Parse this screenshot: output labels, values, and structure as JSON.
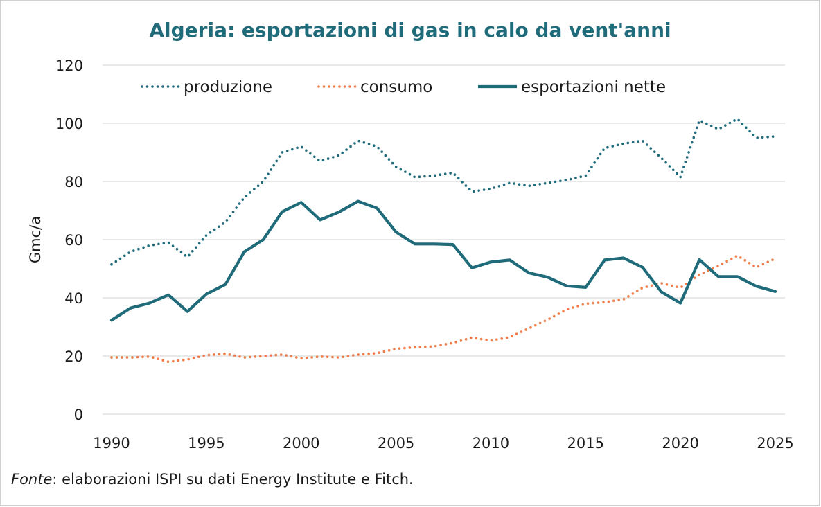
{
  "chart_data": {
    "type": "line",
    "title": "Algeria: esportazioni di gas in calo da vent'anni",
    "xlabel": "",
    "ylabel": "Gmc/a",
    "xlim": [
      1990,
      2025
    ],
    "ylim": [
      0,
      120
    ],
    "x_ticks": [
      1990,
      1995,
      2000,
      2005,
      2010,
      2015,
      2020,
      2025
    ],
    "y_ticks": [
      0,
      20,
      40,
      60,
      80,
      100,
      120
    ],
    "grid": "horizontal",
    "legend_position": "top",
    "x": [
      1990,
      1991,
      1992,
      1993,
      1994,
      1995,
      1996,
      1997,
      1998,
      1999,
      2000,
      2001,
      2002,
      2003,
      2004,
      2005,
      2006,
      2007,
      2008,
      2009,
      2010,
      2011,
      2012,
      2013,
      2014,
      2015,
      2016,
      2017,
      2018,
      2019,
      2020,
      2021,
      2022,
      2023,
      2024,
      2025
    ],
    "series": [
      {
        "name": "produzione",
        "style": "dotted",
        "color": "#1f6b7a",
        "values": [
          51.5,
          55.8,
          58,
          59,
          54,
          61.5,
          66,
          74.5,
          80,
          90,
          92,
          87,
          89,
          94,
          92,
          85,
          81.5,
          82,
          83,
          76.5,
          77.5,
          79.5,
          78.5,
          79.5,
          80.5,
          82,
          91.5,
          93,
          94,
          88,
          81.5,
          101,
          98,
          101.5,
          95,
          95.5
        ]
      },
      {
        "name": "consumo",
        "style": "dotted",
        "color": "#f07d4a",
        "values": [
          19.5,
          19.5,
          19.8,
          18,
          18.8,
          20.3,
          20.8,
          19.5,
          20,
          20.5,
          19.2,
          19.8,
          19.5,
          20.5,
          21,
          22.5,
          23,
          23.3,
          24.5,
          26.3,
          25.3,
          26.5,
          29.5,
          32.5,
          36,
          38,
          38.5,
          39.5,
          43.5,
          45,
          43.5,
          48,
          51,
          54.5,
          50.5,
          53.5
        ]
      },
      {
        "name": "esportazioni nette",
        "style": "solid",
        "color": "#1f6b7a",
        "values": [
          32.3,
          36.5,
          38.2,
          41,
          35.3,
          41.3,
          44.6,
          55.8,
          60,
          69.6,
          72.8,
          66.8,
          69.5,
          73.2,
          70.8,
          62.6,
          58.5,
          58.5,
          58.3,
          50.3,
          52.3,
          53,
          48.6,
          47.1,
          44.1,
          43.6,
          53,
          53.7,
          50.5,
          42,
          38.2,
          53.1,
          47.3,
          47.3,
          44,
          42.2
        ]
      }
    ],
    "source_label": "Fonte",
    "source_text": ": elaborazioni ISPI su dati Energy Institute e Fitch."
  }
}
